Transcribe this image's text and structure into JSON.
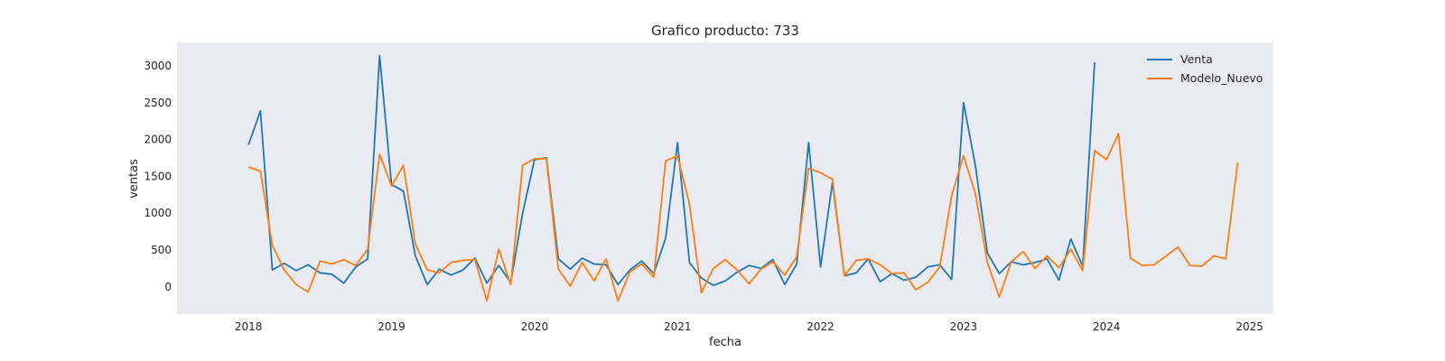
{
  "chart_data": {
    "type": "line",
    "title": "Grafico producto: 733",
    "xlabel": "fecha",
    "ylabel": "ventas",
    "x_tick_labels": [
      "2018",
      "2019",
      "2020",
      "2021",
      "2022",
      "2023",
      "2024",
      "2025"
    ],
    "y_ticks": [
      0,
      500,
      1000,
      1500,
      2000,
      2500,
      3000
    ],
    "xlim": [
      "2017-07",
      "2025-03"
    ],
    "ylim": [
      -370,
      3320
    ],
    "grid": false,
    "legend_position": "top-right",
    "background": "#eaeaf2",
    "series": [
      {
        "name": "Venta",
        "color": "#1f77b4",
        "start": "2018-01",
        "values": [
          1930,
          2390,
          230,
          320,
          220,
          300,
          190,
          170,
          50,
          270,
          380,
          3140,
          1390,
          1300,
          420,
          30,
          240,
          160,
          230,
          390,
          50,
          290,
          60,
          1000,
          1730,
          1750,
          380,
          240,
          390,
          310,
          300,
          30,
          230,
          350,
          180,
          660,
          1960,
          330,
          120,
          20,
          80,
          200,
          290,
          250,
          370,
          30,
          310,
          1960,
          270,
          1420,
          150,
          190,
          380,
          70,
          180,
          90,
          130,
          270,
          300,
          100,
          2500,
          1640,
          460,
          180,
          340,
          300,
          330,
          380,
          90,
          650,
          280,
          3050
        ]
      },
      {
        "name": "Modelo_Nuevo",
        "color": "#ff7f0e",
        "start": "2018-01",
        "values": [
          1630,
          1570,
          560,
          230,
          30,
          -70,
          350,
          310,
          370,
          290,
          510,
          1800,
          1370,
          1650,
          580,
          230,
          190,
          330,
          360,
          370,
          -190,
          510,
          30,
          1650,
          1740,
          1740,
          240,
          10,
          330,
          80,
          380,
          -190,
          200,
          310,
          130,
          1710,
          1780,
          1120,
          -80,
          250,
          370,
          230,
          40,
          240,
          340,
          160,
          410,
          1610,
          1550,
          1460,
          150,
          360,
          380,
          300,
          180,
          190,
          -40,
          60,
          270,
          1240,
          1780,
          1260,
          330,
          -140,
          340,
          480,
          250,
          420,
          260,
          510,
          220,
          1850,
          1730,
          2080,
          390,
          290,
          300,
          420,
          540,
          290,
          280,
          420,
          380,
          1690
        ]
      }
    ]
  }
}
